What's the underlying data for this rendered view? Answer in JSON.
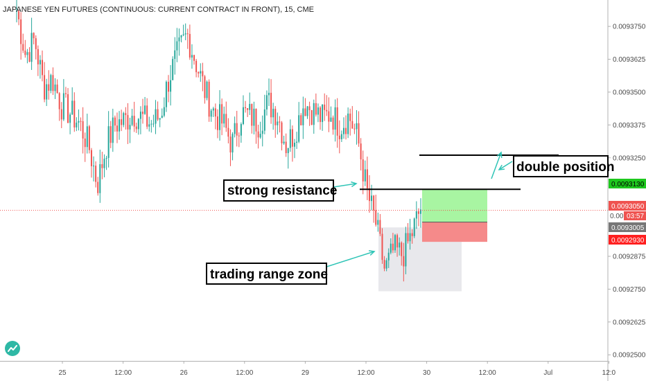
{
  "header": {
    "title": "JAPANESE YEN FUTURES (CONTINUOUS: CURRENT CONTRACT IN FRONT), 15, CME"
  },
  "annotations": {
    "strong_resistance": "strong resistance",
    "double_position": "double position",
    "trading_range_zone": "trading range zone"
  },
  "price_tags": {
    "target": "0.0093130",
    "last": "0.0093050",
    "countdown": "03:57",
    "partial": "0.00",
    "entry": "0.0093005",
    "stop": "0.0092930"
  },
  "colors": {
    "up": "#26a69a",
    "down": "#ef5350",
    "profit_zone": "#a8f5a2",
    "loss_zone": "#f58a8a",
    "range_zone": "#e8e8ec",
    "arrow": "#2ec4b6",
    "target_tag": "#1ec81e",
    "last_tag": "#ef5350",
    "entry_tag": "#777777",
    "stop_tag": "#ff2020"
  },
  "chart_data": {
    "type": "candlestick",
    "title": "JAPANESE YEN FUTURES (CONTINUOUS: CURRENT CONTRACT IN FRONT), 15, CME",
    "xlabel": "",
    "ylabel": "",
    "x_ticks": [
      "25",
      "12:00",
      "26",
      "12:00",
      "29",
      "12:00",
      "30",
      "12:00",
      "Jul",
      "12:0"
    ],
    "y_ticks": [
      "0.0093750",
      "0.0093625",
      "0.0093500",
      "0.0093375",
      "0.0093250",
      "0.0092875",
      "0.0092750",
      "0.0092625",
      "0.0092500"
    ],
    "ylim": [
      0.009249,
      0.009384
    ],
    "legend": "none",
    "grid": false,
    "close_series": [
      0.009381,
      0.009364,
      0.00937,
      0.009352,
      0.009355,
      0.009345,
      0.009342,
      0.009338,
      0.00933,
      0.009315,
      0.00933,
      0.009338,
      0.009339,
      0.009342,
      0.00934,
      0.009338,
      0.009341,
      0.009356,
      0.009365,
      0.009372,
      0.009361,
      0.00935,
      0.009342,
      0.009338,
      0.00933,
      0.009342,
      0.009341,
      0.009338,
      0.009346,
      0.009342,
      0.00933,
      0.009335,
      0.009346,
      0.009343,
      0.00934,
      0.009342,
      0.009337,
      0.009341,
      0.009332,
      0.009312,
      0.0093,
      0.009282,
      0.00929,
      0.009288,
      0.009296,
      0.009306
    ],
    "levels": {
      "resistance": 0.009313,
      "upper_line": 0.009326,
      "last_price": 0.009305,
      "entry": 0.0093005,
      "stop": 0.009293
    }
  }
}
